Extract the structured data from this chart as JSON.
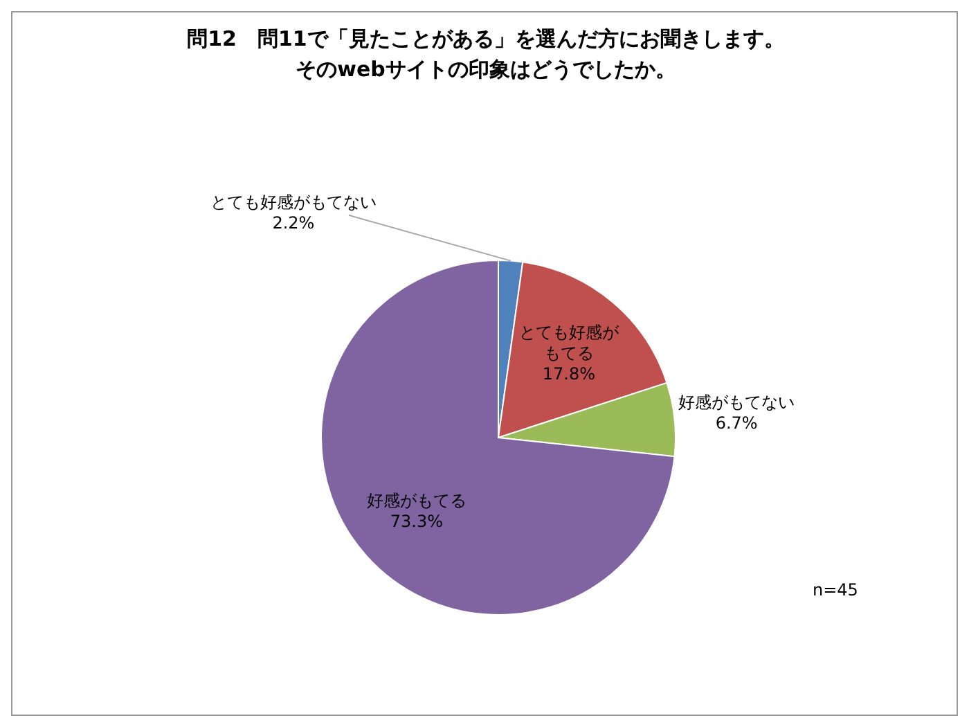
{
  "chart_data": {
    "type": "pie",
    "title": "問12　問11で「見たことがある」を選んだ方にお聞きします。そのwebサイトの印象はどうでしたか。",
    "categories": [
      "とても好感がもてない",
      "とても好感がもてる",
      "好感がもてない",
      "好感がもてる"
    ],
    "values": [
      2.2,
      17.8,
      6.7,
      73.3
    ],
    "value_labels": [
      "2.2%",
      "17.8%",
      "6.7%",
      "73.3%"
    ],
    "colors": [
      "#4f81bd",
      "#c0504d",
      "#9bbb59",
      "#8064a2"
    ],
    "annotations": [
      "n=45"
    ]
  }
}
